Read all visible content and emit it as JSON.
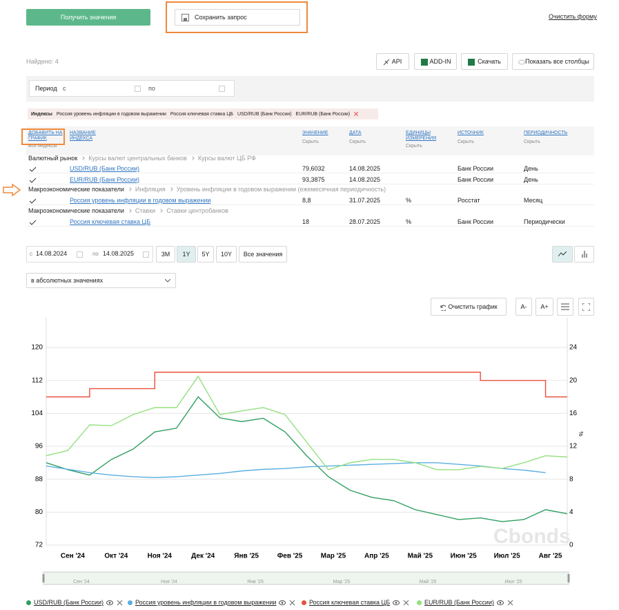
{
  "top": {
    "get_values": "Получить значения",
    "save_query": "Сохранить запрос",
    "clear_form": "Очистить форму"
  },
  "found": "Найдено: 4",
  "toolbar": [
    "API",
    "ADD-IN",
    "Скачать",
    "Показать все столбцы"
  ],
  "period": {
    "label": "Период",
    "from": "с",
    "to": "по"
  },
  "filters": {
    "label": "Индексы",
    "items": [
      "Россия уровень инфляции в годовом выражении",
      "Россия ключевая ставка ЦБ",
      "USD/RUB (Банк России)",
      "EUR/RUB (Банк России)"
    ]
  },
  "table": {
    "columns": [
      {
        "title": "ДОБАВИТЬ НА ГРАФИК",
        "sub": "Все индексы"
      },
      {
        "title": "НАЗВАНИЕ ИНДЕКСА"
      },
      {
        "title": "ЗНАЧЕНИЕ",
        "sub": "Скрыть"
      },
      {
        "title": "ДАТА",
        "sub": "Скрыть"
      },
      {
        "title": "ЕДИНИЦЫ ИЗМЕРЕНИЯ",
        "sub": "Скрыть"
      },
      {
        "title": "ИСТОЧНИК",
        "sub": "Скрыть"
      },
      {
        "title": "ПЕРИОДИЧНОСТЬ",
        "sub": "Скрыть"
      }
    ],
    "groups": [
      {
        "path": [
          "Валютный рынок",
          "Курсы валют центральных банков",
          "Курсы валют ЦБ РФ"
        ],
        "rows": [
          {
            "name": "USD/RUB (Банк России)",
            "value": "79,6032",
            "date": "14.08.2025",
            "source": "Банк России",
            "period": "День"
          },
          {
            "name": "EUR/RUB (Банк России)",
            "value": "93,3875",
            "date": "14.08.2025",
            "source": "Банк России",
            "period": "День"
          }
        ]
      },
      {
        "path": [
          "Макроэкономические показатели",
          "Инфляция",
          "Уровень инфляции в годовом выражении (ежемесячная периодичность)"
        ],
        "rows": [
          {
            "name": "Россия уровень инфляции в годовом выражении",
            "value": "8,8",
            "date": "31.07.2025",
            "unit": "%",
            "source": "Росстат",
            "period": "Месяц"
          }
        ]
      },
      {
        "path": [
          "Макроэкономические показатели",
          "Ставки",
          "Ставки центробанков"
        ],
        "rows": [
          {
            "name": "Россия ключевая ставка ЦБ",
            "value": "18",
            "date": "28.07.2025",
            "unit": "%",
            "source": "Банк России",
            "period": "Периодически"
          }
        ]
      }
    ]
  },
  "range": {
    "from_label": "с",
    "from": "14.08.2024",
    "to_label": "по",
    "to": "14.08.2025",
    "buttons": [
      "3M",
      "1Y",
      "5Y",
      "10Y",
      "Все значения"
    ],
    "active": 1
  },
  "mode": "в абсолютных значениях",
  "chart_controls": {
    "clear": "Очистить график",
    "minus": "A-",
    "plus": "A+"
  },
  "chart_data": {
    "type": "line",
    "watermark": "Cbonds",
    "y2label": "%",
    "categories": [
      null,
      "Сен '24",
      null,
      "Окт '24",
      null,
      "Ноя '24",
      null,
      "Дек '24",
      null,
      "Янв '25",
      null,
      "Фев '25",
      null,
      "Мар '25",
      null,
      "Апр '25",
      null,
      "Май '25",
      null,
      "Июн '25",
      null,
      "Июл '25",
      null,
      "Авг '25",
      null
    ],
    "ylim": [
      72,
      120
    ],
    "yticks": [
      72,
      80,
      88,
      96,
      104,
      112,
      120
    ],
    "y2lim": [
      0,
      24
    ],
    "y2ticks": [
      0,
      4,
      8,
      12,
      16,
      20,
      24
    ],
    "grid": true,
    "series": [
      {
        "name": "USD/RUB (Банк России)",
        "color": "#2f9e62",
        "values": [
          92,
          90.3,
          89,
          92.8,
          95.3,
          99.5,
          100.4,
          108,
          102.9,
          102,
          102.8,
          99.5,
          93.7,
          88.6,
          85.3,
          83.6,
          82.8,
          80.6,
          79.4,
          78.2,
          78.6,
          77.7,
          78.2,
          80.6,
          79.6
        ]
      },
      {
        "name": "Россия уровень инфляции в годовом выражении",
        "color": "#5aaee0",
        "axis": "y2",
        "values": [
          9.6,
          9.2,
          8.8,
          8.5,
          8.3,
          8.2,
          8.3,
          8.5,
          8.7,
          9.0,
          9.2,
          9.3,
          9.5,
          9.6,
          9.7,
          9.8,
          9.9,
          10.0,
          10.0,
          9.8,
          9.6,
          9.3,
          9.1,
          8.8,
          null
        ]
      },
      {
        "name": "Россия ключевая ставка ЦБ",
        "color": "#e8503a",
        "axis": "y2",
        "step": "after",
        "values": [
          18,
          18,
          19,
          19,
          19,
          21,
          21,
          21,
          21,
          21,
          21,
          21,
          21,
          21,
          21,
          21,
          21,
          21,
          21,
          21,
          20,
          20,
          20,
          18,
          18
        ]
      },
      {
        "name": "EUR/RUB (Банк России)",
        "color": "#93e07e",
        "values": [
          93.7,
          95,
          101.2,
          101,
          103.7,
          105.4,
          105.4,
          113,
          103.7,
          104.6,
          105.4,
          103.7,
          97,
          90.3,
          92,
          92.8,
          92.8,
          92,
          90.3,
          90.3,
          91.1,
          90.6,
          92,
          93.7,
          93.4
        ]
      }
    ],
    "navigator_labels": [
      "Сен '24",
      "Ноя '24",
      "Янв '25",
      "Мар '25",
      "Май '25",
      "Июл '25"
    ]
  }
}
